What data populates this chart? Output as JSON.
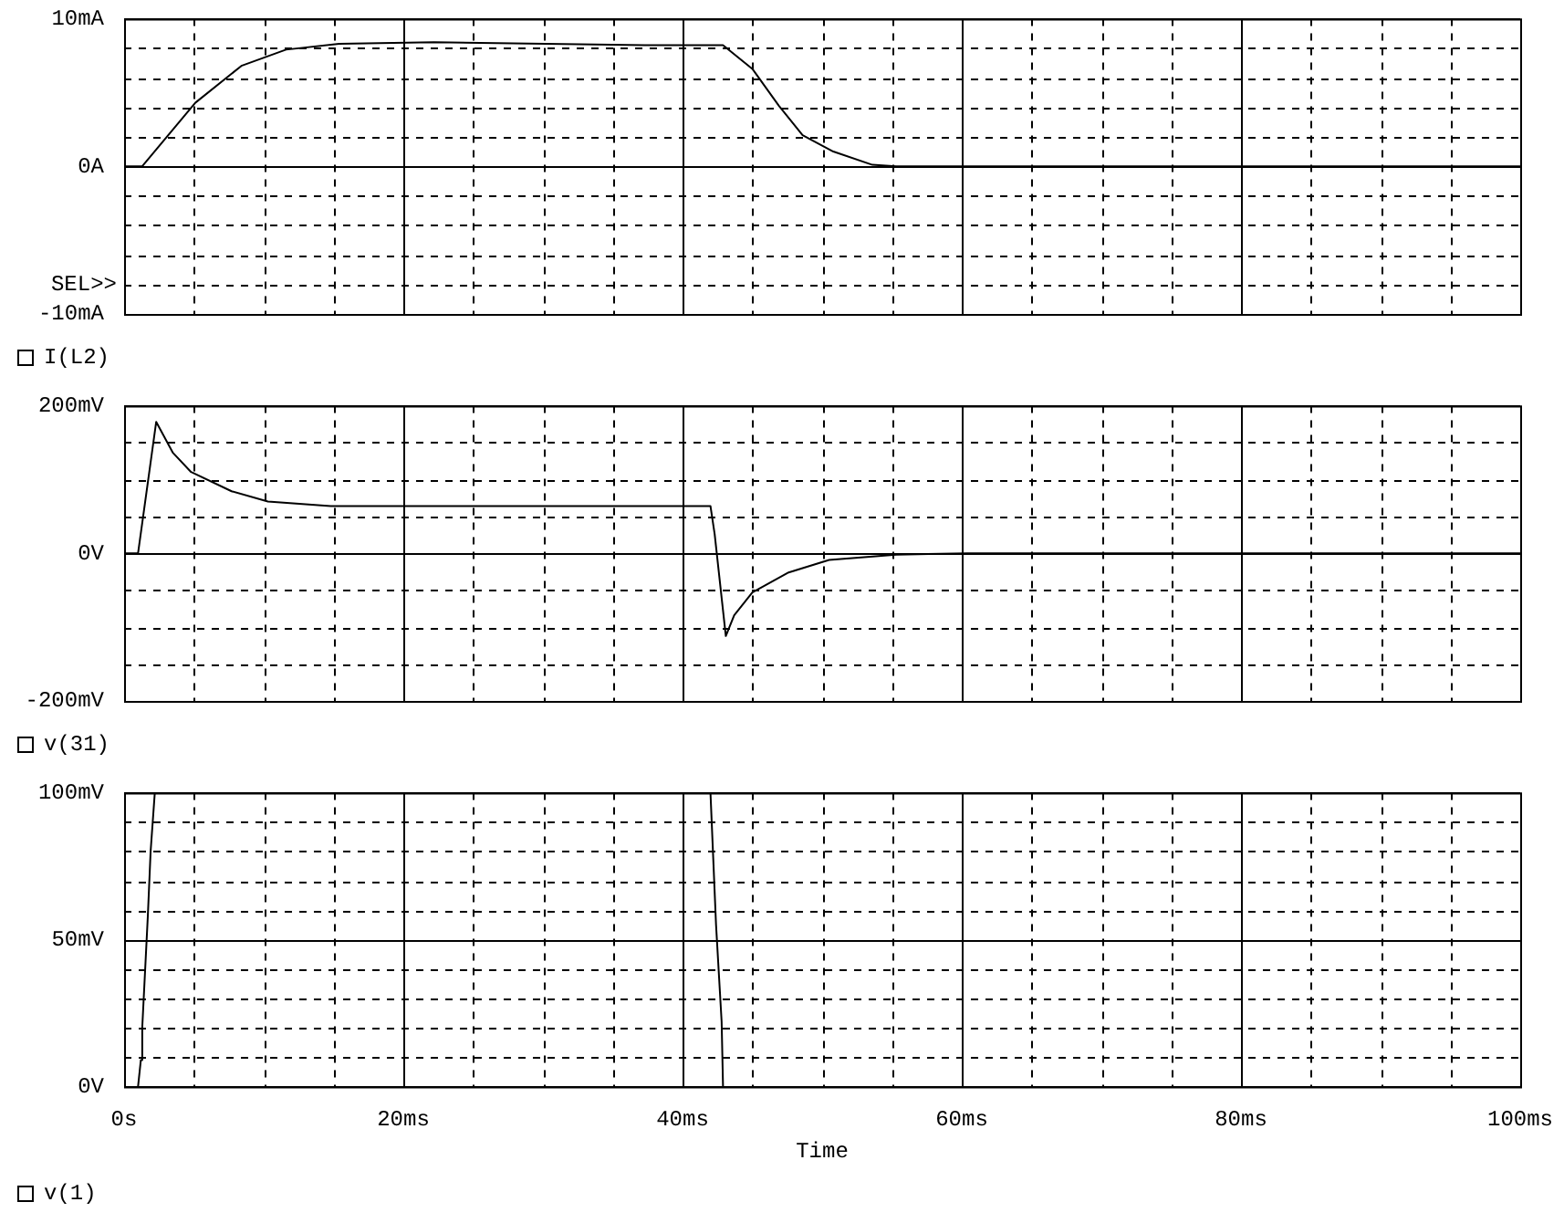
{
  "chart_data": [
    {
      "type": "line",
      "annotations": [
        "SEL>>"
      ],
      "x": [
        0,
        1.3,
        5.1,
        8.4,
        11.6,
        15.4,
        22.2,
        37.3,
        42.9,
        45,
        46.9,
        48.6,
        50.8,
        53.6,
        55.3,
        100
      ],
      "series": [
        {
          "name": "I(L2)",
          "color": "#000000",
          "values": [
            0,
            0,
            4.3,
            6.8,
            7.9,
            8.3,
            8.4,
            8.2,
            8.2,
            6.6,
            4.1,
            2.1,
            1.0,
            0.1,
            0,
            0
          ]
        }
      ],
      "xlim": [
        0,
        100
      ],
      "xticks": [
        0,
        {
          "value": 5,
          "label": null
        },
        {
          "value": 10,
          "label": null
        },
        {
          "value": 15,
          "label": null
        },
        20,
        {
          "value": 25,
          "label": null
        },
        {
          "value": 30,
          "label": null
        },
        {
          "value": 35,
          "label": null
        },
        40,
        {
          "value": 45,
          "label": null
        },
        {
          "value": 50,
          "label": null
        },
        {
          "value": 55,
          "label": null
        },
        60,
        {
          "value": 65,
          "label": null
        },
        {
          "value": 70,
          "label": null
        },
        {
          "value": 75,
          "label": null
        },
        80,
        {
          "value": 85,
          "label": null
        },
        {
          "value": 90,
          "label": null
        },
        {
          "value": 95,
          "label": null
        },
        100
      ],
      "ylim": [
        -10,
        10
      ],
      "yticks": [
        {
          "value": -10,
          "label": "-10mA"
        },
        {
          "value": -8,
          "label": null
        },
        {
          "value": -6,
          "label": null
        },
        {
          "value": -4,
          "label": null
        },
        {
          "value": -2,
          "label": null
        },
        {
          "value": 0,
          "label": "0A"
        },
        {
          "value": 2,
          "label": null
        },
        {
          "value": 4,
          "label": null
        },
        {
          "value": 6,
          "label": null
        },
        {
          "value": 8,
          "label": null
        },
        {
          "value": 10,
          "label": "10mA"
        }
      ],
      "grid": true,
      "legend": "bottom left",
      "tick_labels": "y"
    },
    {
      "type": "line",
      "x": [
        0,
        1.0,
        2.3,
        3.5,
        4.8,
        7.7,
        10.3,
        14.8,
        42.0,
        42.3,
        43.1,
        43.7,
        45.0,
        47.6,
        50.5,
        55.3,
        60.4,
        100
      ],
      "series": [
        {
          "name": "v(31)",
          "color": "#000000",
          "values": [
            0,
            0,
            178,
            136,
            110,
            84,
            70,
            64,
            64,
            26,
            -112,
            -84,
            -53,
            -26,
            -9,
            -2,
            0,
            0
          ]
        }
      ],
      "xlim": [
        0,
        100
      ],
      "xticks": [
        0,
        {
          "value": 5,
          "label": null
        },
        {
          "value": 10,
          "label": null
        },
        {
          "value": 15,
          "label": null
        },
        20,
        {
          "value": 25,
          "label": null
        },
        {
          "value": 30,
          "label": null
        },
        {
          "value": 35,
          "label": null
        },
        40,
        {
          "value": 45,
          "label": null
        },
        {
          "value": 50,
          "label": null
        },
        {
          "value": 55,
          "label": null
        },
        60,
        {
          "value": 65,
          "label": null
        },
        {
          "value": 70,
          "label": null
        },
        {
          "value": 75,
          "label": null
        },
        80,
        {
          "value": 85,
          "label": null
        },
        {
          "value": 90,
          "label": null
        },
        {
          "value": 95,
          "label": null
        },
        100
      ],
      "ylim": [
        -200,
        200
      ],
      "yticks": [
        {
          "value": -200,
          "label": "-200mV"
        },
        {
          "value": -150,
          "label": null
        },
        {
          "value": -100,
          "label": null
        },
        {
          "value": -50,
          "label": null
        },
        {
          "value": 0,
          "label": "0V"
        },
        {
          "value": 50,
          "label": null
        },
        {
          "value": 100,
          "label": null
        },
        {
          "value": 150,
          "label": null
        },
        {
          "value": 200,
          "label": "200mV"
        }
      ],
      "grid": true,
      "legend": "bottom left",
      "tick_labels": "y"
    },
    {
      "type": "line",
      "xlabel": "Time",
      "x": [
        1.0,
        1.2,
        1.3,
        1.7,
        1.9,
        2.2,
        20,
        42.0,
        42.4,
        42.8,
        42.9
      ],
      "series": [
        {
          "name": "v(1)",
          "color": "#000000",
          "values": [
            0,
            9,
            20,
            58,
            80,
            100,
            null,
            100,
            55,
            22,
            0
          ]
        }
      ],
      "xlim": [
        0,
        100
      ],
      "xticks": [
        {
          "value": 0,
          "label": "0s"
        },
        {
          "value": 5,
          "label": null
        },
        {
          "value": 10,
          "label": null
        },
        {
          "value": 15,
          "label": null
        },
        {
          "value": 20,
          "label": "20ms"
        },
        {
          "value": 25,
          "label": null
        },
        {
          "value": 30,
          "label": null
        },
        {
          "value": 35,
          "label": null
        },
        {
          "value": 40,
          "label": "40ms"
        },
        {
          "value": 45,
          "label": null
        },
        {
          "value": 50,
          "label": null
        },
        {
          "value": 55,
          "label": null
        },
        {
          "value": 60,
          "label": "60ms"
        },
        {
          "value": 65,
          "label": null
        },
        {
          "value": 70,
          "label": null
        },
        {
          "value": 75,
          "label": null
        },
        {
          "value": 80,
          "label": "80ms"
        },
        {
          "value": 85,
          "label": null
        },
        {
          "value": 90,
          "label": null
        },
        {
          "value": 95,
          "label": null
        },
        {
          "value": 100,
          "label": "100ms"
        }
      ],
      "ylim": [
        0,
        100
      ],
      "yticks": [
        {
          "value": 0,
          "label": "0V"
        },
        {
          "value": 10,
          "label": null
        },
        {
          "value": 20,
          "label": null
        },
        {
          "value": 30,
          "label": null
        },
        {
          "value": 40,
          "label": null
        },
        {
          "value": 50,
          "label": "50mV"
        },
        {
          "value": 60,
          "label": null
        },
        {
          "value": 70,
          "label": null
        },
        {
          "value": 80,
          "label": null
        },
        {
          "value": 90,
          "label": null
        },
        {
          "value": 100,
          "label": "100mV"
        }
      ],
      "grid": true,
      "legend": "bottom left"
    }
  ]
}
